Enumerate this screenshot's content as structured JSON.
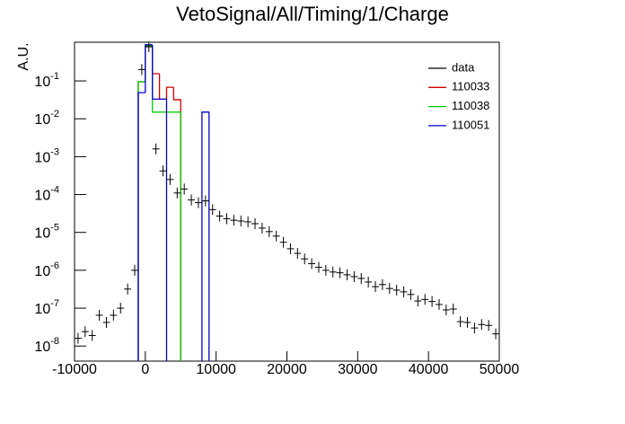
{
  "chart_data": {
    "type": "histogram",
    "title": "VetoSignal/All/Timing/1/Charge",
    "y_label": "A.U.",
    "log_y": true,
    "legend": "top-right",
    "bins": [
      -10000,
      -9000,
      -8000,
      -7000,
      -6000,
      -5000,
      -4000,
      -3000,
      -2000,
      -1000,
      0,
      1000,
      2000,
      3000,
      4000,
      5000,
      6000,
      7000,
      8000,
      9000,
      10000,
      11000,
      12000,
      13000,
      14000,
      15000,
      16000,
      17000,
      18000,
      19000,
      20000,
      21000,
      22000,
      23000,
      24000,
      25000,
      26000,
      27000,
      28000,
      29000,
      30000,
      31000,
      32000,
      33000,
      34000,
      35000,
      36000,
      37000,
      38000,
      39000,
      40000,
      41000,
      42000,
      43000,
      44000,
      45000,
      46000,
      47000,
      48000,
      49000,
      50000
    ],
    "series": [
      {
        "name": "data",
        "color": "#000000",
        "style": "points",
        "values": [
          1.6e-08,
          2.4e-08,
          1.9e-08,
          6.5e-08,
          4.2e-08,
          6.5e-08,
          1e-07,
          3.2e-07,
          1e-06,
          0.2,
          0.8,
          0.0016,
          0.00042,
          0.00025,
          0.00011,
          0.00014,
          7.2e-05,
          6.1e-05,
          6.8e-05,
          4e-05,
          2.7e-05,
          2.3e-05,
          2.1e-05,
          2e-05,
          1.9e-05,
          1.7e-05,
          1.3e-05,
          1.05e-05,
          8e-06,
          5.5e-06,
          3.7e-06,
          2.8e-06,
          2e-06,
          1.5e-06,
          1.2e-06,
          1e-06,
          9e-07,
          8.6e-07,
          7.6e-07,
          6.8e-07,
          6.1e-07,
          4.9e-07,
          3.7e-07,
          4.2e-07,
          3.3e-07,
          3e-07,
          2.7e-07,
          2.3e-07,
          1.55e-07,
          1.7e-07,
          1.5e-07,
          1.25e-07,
          9e-08,
          9.5e-08,
          4.4e-08,
          4.2e-08,
          3e-08,
          3.7e-08,
          3.5e-08,
          2.1e-08
        ]
      },
      {
        "name": "110033",
        "color": "#cc0000",
        "style": "step",
        "values": [
          null,
          null,
          null,
          null,
          null,
          null,
          null,
          null,
          null,
          0.095,
          0.8,
          0.155,
          0.033,
          0.068,
          0.032,
          null,
          null,
          null,
          null,
          null,
          null,
          null,
          null,
          null,
          null,
          null,
          null,
          null,
          null,
          null,
          null,
          null,
          null,
          null,
          null,
          null,
          null,
          null,
          null,
          null,
          null,
          null,
          null,
          null,
          null,
          null,
          null,
          null,
          null,
          null,
          null,
          null,
          null,
          null,
          null,
          null,
          null,
          null,
          null,
          null
        ]
      },
      {
        "name": "110038",
        "color": "#00cc00",
        "style": "step",
        "values": [
          null,
          null,
          null,
          null,
          null,
          null,
          null,
          null,
          null,
          0.095,
          0.85,
          0.015,
          0.015,
          0.015,
          0.015,
          null,
          null,
          null,
          null,
          null,
          null,
          null,
          null,
          null,
          null,
          null,
          null,
          null,
          null,
          null,
          null,
          null,
          null,
          null,
          null,
          null,
          null,
          null,
          null,
          null,
          null,
          null,
          null,
          null,
          null,
          null,
          null,
          null,
          null,
          null,
          null,
          null,
          null,
          null,
          null,
          null,
          null,
          null,
          null,
          null
        ]
      },
      {
        "name": "110051",
        "color": "#0000cc",
        "style": "step",
        "values": [
          null,
          null,
          null,
          null,
          null,
          null,
          null,
          null,
          null,
          0.049,
          0.9,
          0.033,
          0.033,
          null,
          null,
          null,
          null,
          null,
          0.015,
          null,
          null,
          null,
          null,
          null,
          null,
          null,
          null,
          null,
          null,
          null,
          null,
          null,
          null,
          null,
          null,
          null,
          null,
          null,
          null,
          null,
          null,
          null,
          null,
          null,
          null,
          null,
          null,
          null,
          null,
          null,
          null,
          null,
          null,
          null,
          null,
          null,
          null,
          null,
          null,
          null
        ]
      }
    ],
    "xlim": [
      -10000,
      50000
    ],
    "xticks": [
      -10000,
      0,
      10000,
      20000,
      30000,
      40000,
      50000
    ],
    "ylim": [
      4e-09,
      1.05
    ],
    "yticks": [
      {
        "value": 1e-08,
        "label": "10",
        "exponent": "-8"
      },
      {
        "value": 1e-07,
        "label": "10",
        "exponent": "-7"
      },
      {
        "value": 1e-06,
        "label": "10",
        "exponent": "-6"
      },
      {
        "value": 1e-05,
        "label": "10",
        "exponent": "-5"
      },
      {
        "value": 0.0001,
        "label": "10",
        "exponent": "-4"
      },
      {
        "value": 0.001,
        "label": "10",
        "exponent": "-3"
      },
      {
        "value": 0.01,
        "label": "10",
        "exponent": "-2"
      },
      {
        "value": 0.1,
        "label": "10",
        "exponent": "-1"
      }
    ]
  }
}
